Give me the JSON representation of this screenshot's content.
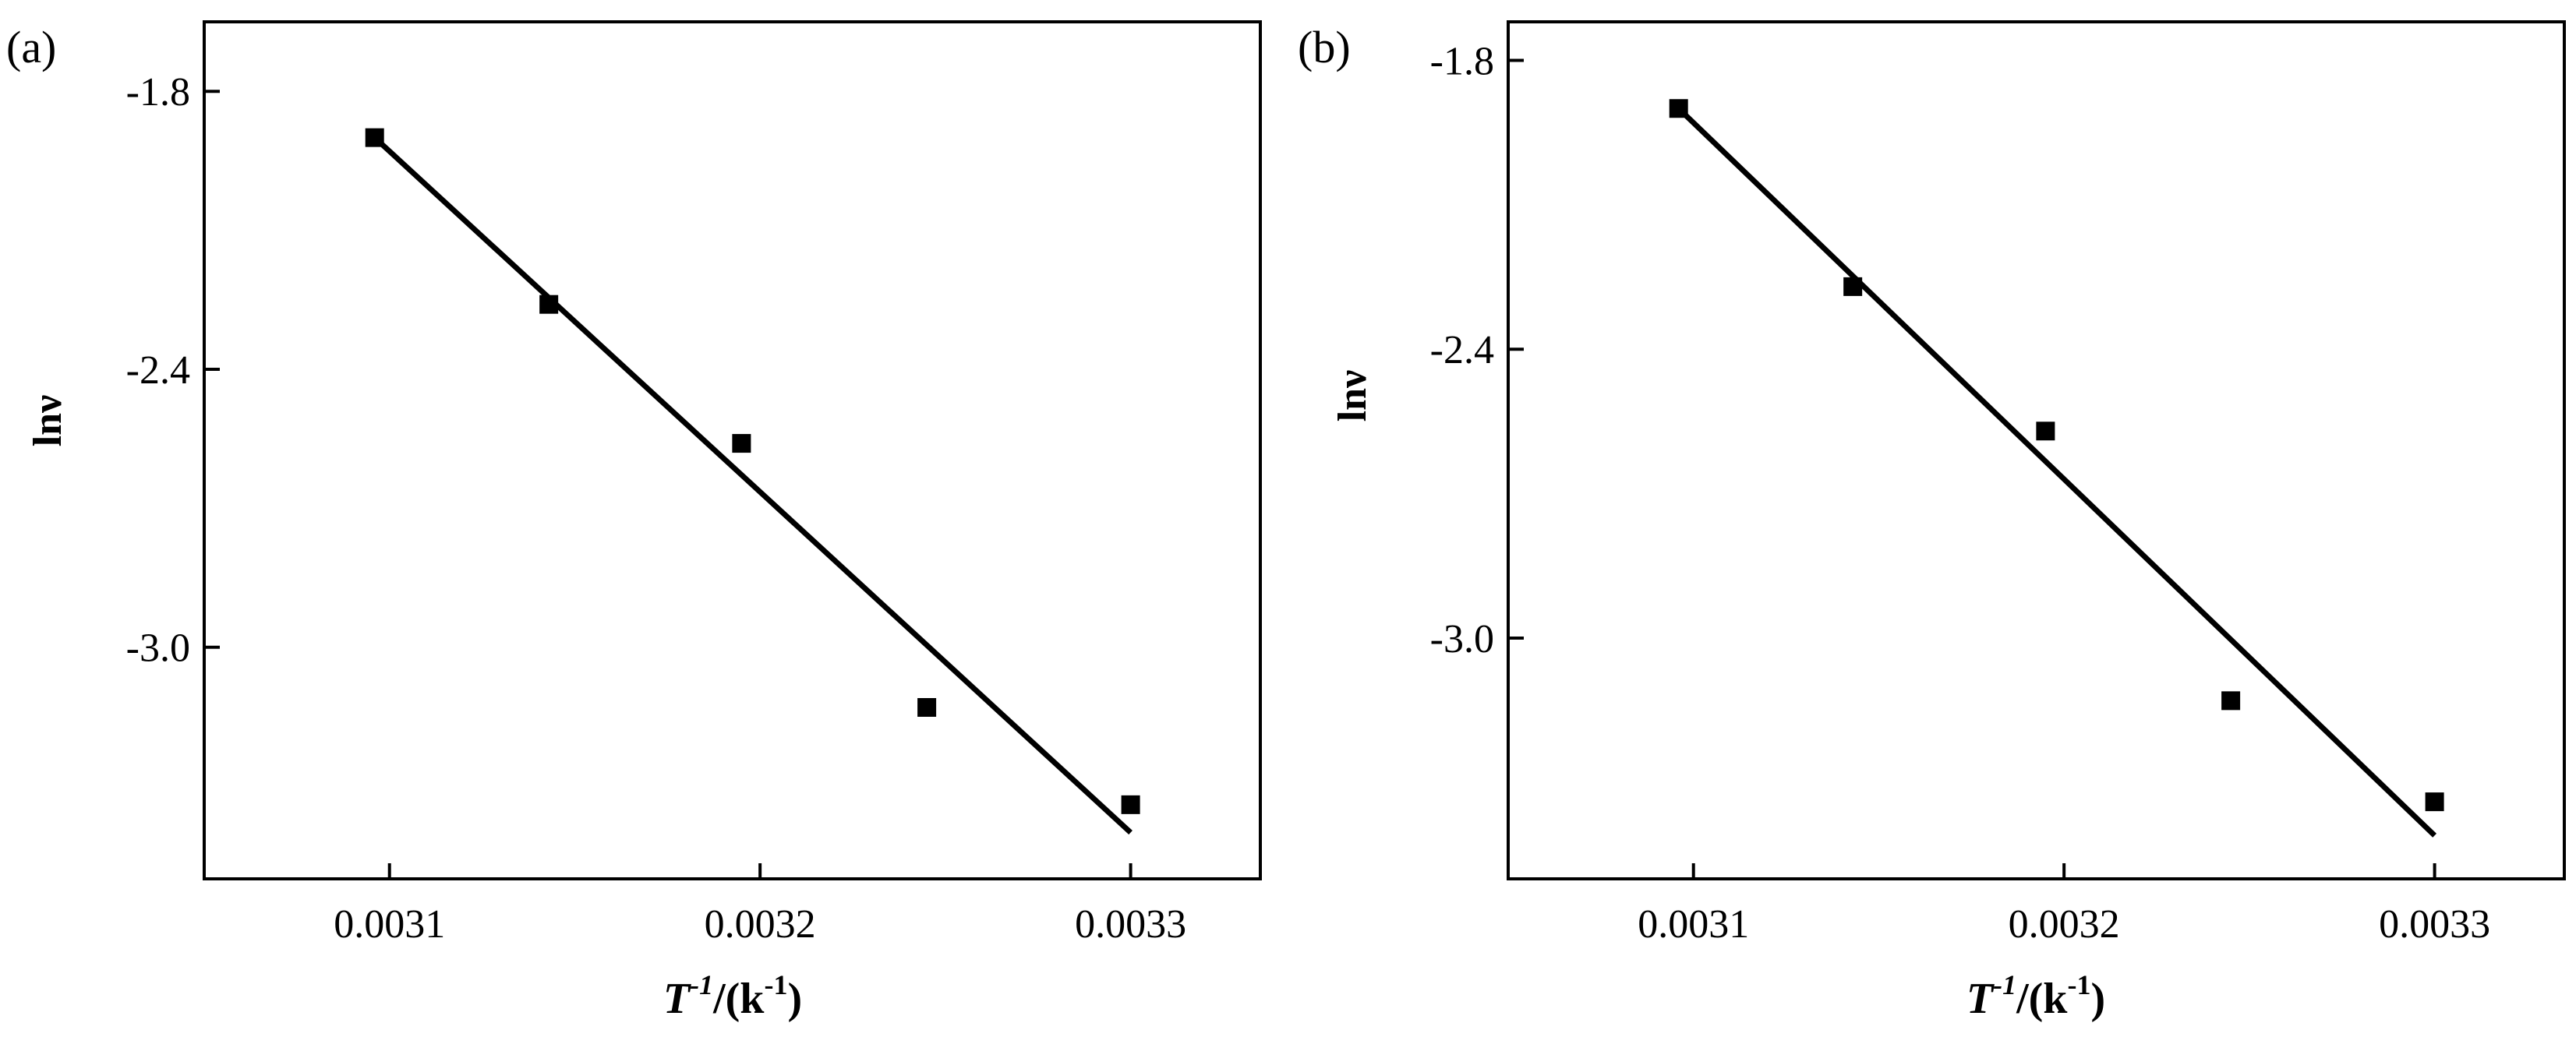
{
  "chart_data": [
    {
      "panel_label": "(a)",
      "type": "scatter",
      "xlabel_main": "T",
      "xlabel_sup": "-1",
      "xlabel_rest": "/(k",
      "xlabel_unit_sup": "-1",
      "xlabel_close": ")",
      "ylabel": "lnν",
      "xlim": [
        0.00305,
        0.003335
      ],
      "ylim": [
        -3.5,
        -1.65
      ],
      "x_ticks": [
        0.0031,
        0.0032,
        0.0033
      ],
      "x_tick_labels": [
        "0.0031",
        "0.0032",
        "0.0033"
      ],
      "y_ticks": [
        -1.8,
        -2.4,
        -3.0
      ],
      "y_tick_labels": [
        "-1.8",
        "-2.4",
        "-3.0"
      ],
      "points": [
        {
          "x": 0.003096,
          "y": -1.9
        },
        {
          "x": 0.003143,
          "y": -2.26
        },
        {
          "x": 0.003195,
          "y": -2.56
        },
        {
          "x": 0.003245,
          "y": -3.13
        },
        {
          "x": 0.0033,
          "y": -3.34
        }
      ],
      "fit_line": [
        {
          "x": 0.003096,
          "y": -1.9
        },
        {
          "x": 0.0033,
          "y": -3.4
        }
      ],
      "grid": false
    },
    {
      "panel_label": "(b)",
      "type": "scatter",
      "xlabel_main": "T",
      "xlabel_sup": "-1",
      "xlabel_rest": "/(k",
      "xlabel_unit_sup": "-1",
      "xlabel_close": ")",
      "ylabel": "lnν",
      "xlim": [
        0.00305,
        0.003335
      ],
      "ylim": [
        -3.5,
        -1.72
      ],
      "x_ticks": [
        0.0031,
        0.0032,
        0.0033
      ],
      "x_tick_labels": [
        "0.0031",
        "0.0032",
        "0.0033"
      ],
      "y_ticks": [
        -1.8,
        -2.4,
        -3.0
      ],
      "y_tick_labels": [
        "-1.8",
        "-2.4",
        "-3.0"
      ],
      "points": [
        {
          "x": 0.003096,
          "y": -1.9
        },
        {
          "x": 0.003143,
          "y": -2.27
        },
        {
          "x": 0.003195,
          "y": -2.57
        },
        {
          "x": 0.003245,
          "y": -3.13
        },
        {
          "x": 0.0033,
          "y": -3.34
        }
      ],
      "fit_line": [
        {
          "x": 0.003096,
          "y": -1.9
        },
        {
          "x": 0.0033,
          "y": -3.41
        }
      ],
      "grid": false
    }
  ]
}
